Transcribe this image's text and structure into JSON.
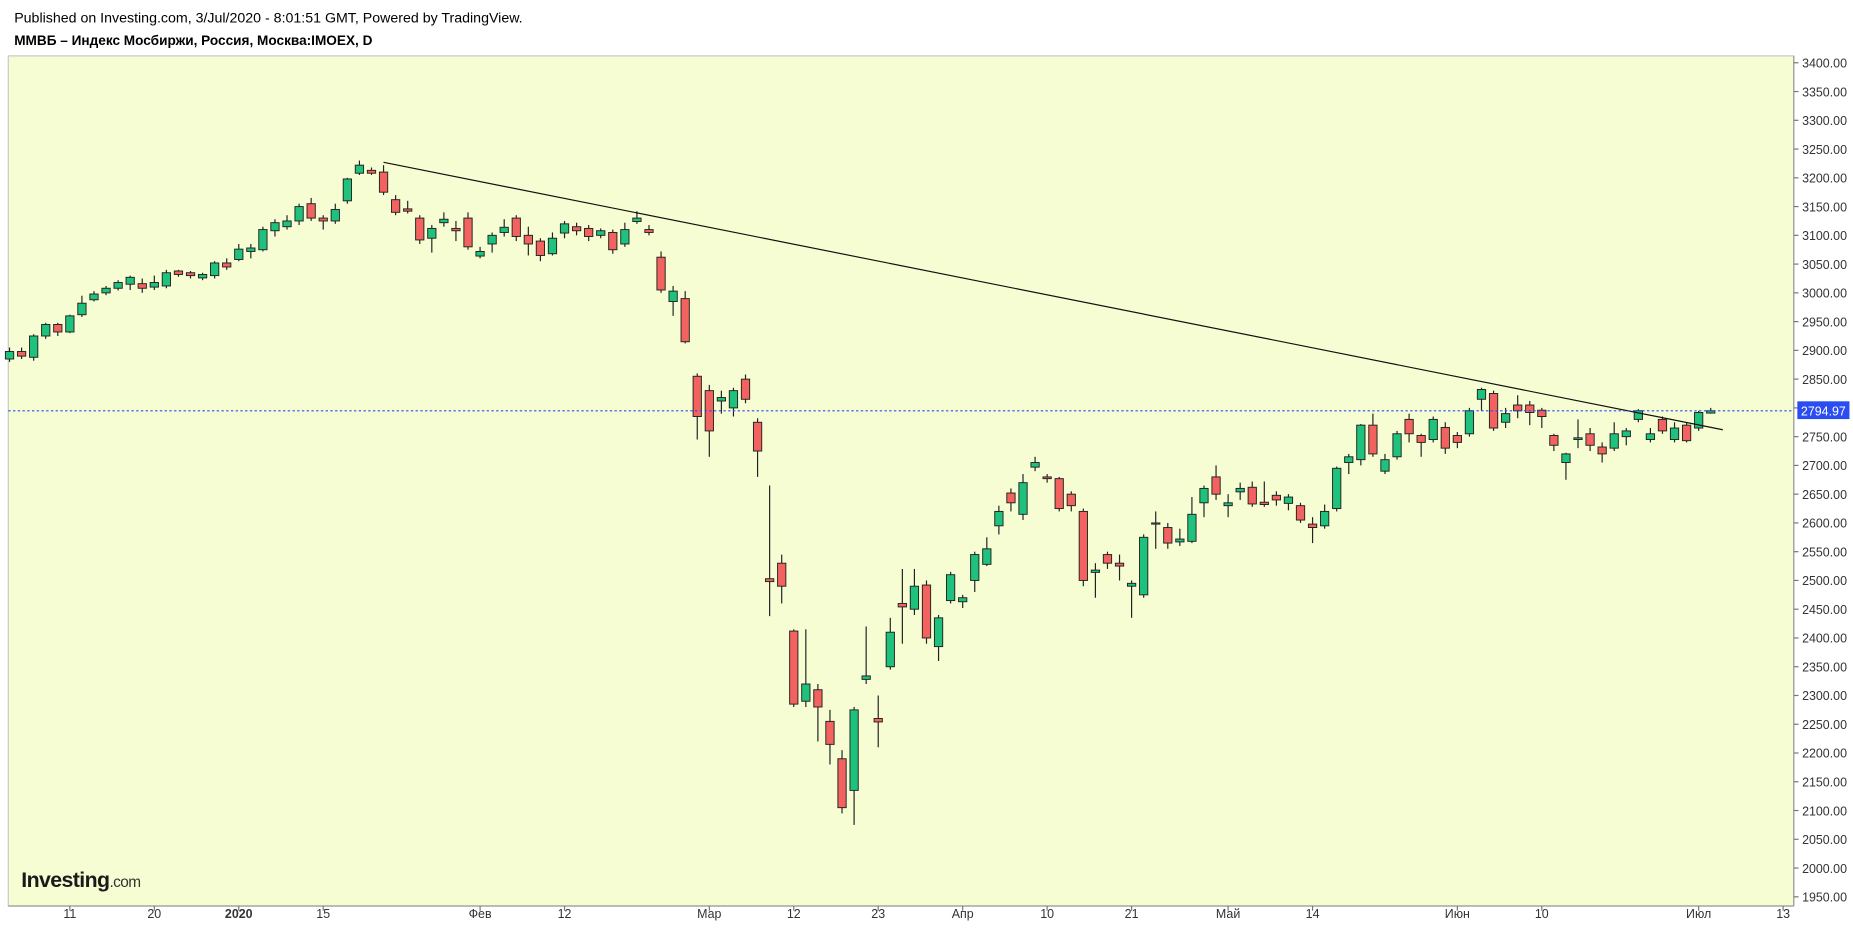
{
  "header": {
    "published": "Published on Investing.com, 3/Jul/2020 - 8:01:51 GMT, Powered by TradingView.",
    "symbol": "ММВБ – Индекс Мосбиржи, Россия, Москва:IMOEX, D",
    "logo": "Investing",
    "logo_suffix": ".com"
  },
  "chart_data": {
    "type": "candlestick",
    "categories": [
      null,
      null,
      null,
      null,
      null,
      "11",
      null,
      null,
      null,
      null,
      null,
      null,
      "20",
      null,
      null,
      null,
      null,
      null,
      null,
      "2020",
      null,
      null,
      null,
      null,
      null,
      null,
      "15",
      null,
      null,
      null,
      null,
      null,
      null,
      null,
      null,
      null,
      null,
      null,
      null,
      "Фев",
      null,
      null,
      null,
      null,
      null,
      null,
      "12",
      null,
      null,
      null,
      null,
      null,
      null,
      null,
      null,
      null,
      null,
      null,
      "Мар",
      null,
      null,
      null,
      null,
      null,
      null,
      "12",
      null,
      null,
      null,
      null,
      null,
      null,
      "23",
      null,
      null,
      null,
      null,
      null,
      null,
      "Апр",
      null,
      null,
      null,
      null,
      null,
      null,
      "10",
      null,
      null,
      null,
      null,
      null,
      null,
      "21",
      null,
      null,
      null,
      null,
      null,
      null,
      null,
      "Май",
      null,
      null,
      null,
      null,
      null,
      null,
      "14",
      null,
      null,
      null,
      null,
      null,
      null,
      null,
      null,
      null,
      null,
      null,
      "Июн",
      null,
      null,
      null,
      null,
      null,
      null,
      "10",
      null,
      null,
      null,
      null,
      null,
      null,
      null,
      null,
      null,
      null,
      null,
      null,
      "Июл",
      null,
      null,
      null,
      null,
      null,
      null,
      "13"
    ],
    "open": [
      2885,
      2898,
      2888,
      2925,
      2945,
      2932,
      2962,
      2988,
      3000,
      3008,
      3015,
      3016,
      3010,
      3012,
      3038,
      3035,
      3026,
      3030,
      3052,
      3058,
      3072,
      3075,
      3108,
      3115,
      3125,
      3155,
      3130,
      3125,
      3160,
      3208,
      3213,
      3210,
      3162,
      3146,
      3130,
      3095,
      3122,
      3112,
      3130,
      3064,
      3085,
      3105,
      3130,
      3100,
      3090,
      3068,
      3104,
      3115,
      3112,
      3100,
      3105,
      3085,
      3124,
      3110,
      3062,
      2985,
      2990,
      2855,
      2830,
      2812,
      2800,
      2850,
      2775,
      2503,
      2530,
      2412,
      2290,
      2310,
      2255,
      2190,
      2135,
      2328,
      2260,
      2350,
      2460,
      2450,
      2492,
      2385,
      2465,
      2463,
      2500,
      2528,
      2595,
      2652,
      2615,
      2697,
      2680,
      2677,
      2650,
      2620,
      2514,
      2545,
      2530,
      2490,
      2475,
      2600,
      2592,
      2567,
      2568,
      2635,
      2680,
      2630,
      2654,
      2662,
      2636,
      2648,
      2634,
      2630,
      2598,
      2595,
      2625,
      2705,
      2710,
      2770,
      2690,
      2715,
      2780,
      2752,
      2745,
      2766,
      2752,
      2755,
      2815,
      2825,
      2775,
      2805,
      2805,
      2796,
      2752,
      2705,
      2745,
      2755,
      2732,
      2730,
      2750,
      2780,
      2745,
      2780,
      2745,
      2770,
      2765,
      2791,
      null,
      null,
      null,
      null,
      null,
      null
    ],
    "high": [
      2905,
      2905,
      2928,
      2948,
      2948,
      2962,
      2995,
      3003,
      3012,
      3022,
      3030,
      3025,
      3030,
      3040,
      3040,
      3038,
      3035,
      3055,
      3060,
      3085,
      3085,
      3115,
      3128,
      3135,
      3155,
      3165,
      3135,
      3155,
      3200,
      3230,
      3218,
      3222,
      3170,
      3160,
      3135,
      3118,
      3140,
      3125,
      3140,
      3080,
      3105,
      3128,
      3135,
      3115,
      3095,
      3105,
      3125,
      3122,
      3118,
      3112,
      3110,
      3122,
      3142,
      3118,
      3072,
      3012,
      3003,
      2860,
      2840,
      2830,
      2835,
      2858,
      2782,
      2665,
      2545,
      2415,
      2415,
      2320,
      2275,
      2205,
      2280,
      2420,
      2300,
      2435,
      2520,
      2520,
      2500,
      2440,
      2515,
      2475,
      2550,
      2575,
      2630,
      2660,
      2685,
      2715,
      2685,
      2680,
      2655,
      2625,
      2530,
      2550,
      2545,
      2500,
      2580,
      2620,
      2600,
      2590,
      2645,
      2665,
      2700,
      2650,
      2670,
      2672,
      2672,
      2655,
      2650,
      2635,
      2610,
      2632,
      2698,
      2720,
      2772,
      2790,
      2720,
      2760,
      2790,
      2755,
      2785,
      2775,
      2758,
      2800,
      2835,
      2830,
      2800,
      2822,
      2812,
      2800,
      2755,
      2722,
      2780,
      2765,
      2740,
      2775,
      2765,
      2798,
      2765,
      2785,
      2775,
      2775,
      2795,
      2800,
      null,
      null,
      null,
      null,
      null,
      null
    ],
    "low": [
      2880,
      2885,
      2882,
      2920,
      2925,
      2930,
      2958,
      2985,
      2996,
      3004,
      3005,
      3000,
      3005,
      3008,
      3028,
      3025,
      3022,
      3025,
      3040,
      3055,
      3060,
      3072,
      3098,
      3110,
      3118,
      3125,
      3110,
      3120,
      3155,
      3205,
      3205,
      3170,
      3135,
      3138,
      3085,
      3070,
      3115,
      3090,
      3075,
      3060,
      3070,
      3098,
      3090,
      3065,
      3055,
      3065,
      3095,
      3100,
      3090,
      3095,
      3068,
      3080,
      3120,
      3100,
      3000,
      2960,
      2912,
      2745,
      2715,
      2790,
      2785,
      2808,
      2680,
      2438,
      2460,
      2280,
      2280,
      2220,
      2180,
      2095,
      2075,
      2320,
      2210,
      2345,
      2390,
      2440,
      2390,
      2360,
      2460,
      2452,
      2480,
      2525,
      2580,
      2620,
      2605,
      2690,
      2670,
      2620,
      2620,
      2490,
      2470,
      2520,
      2500,
      2435,
      2470,
      2555,
      2555,
      2560,
      2565,
      2610,
      2640,
      2610,
      2640,
      2628,
      2628,
      2630,
      2622,
      2600,
      2565,
      2590,
      2620,
      2685,
      2700,
      2715,
      2685,
      2710,
      2740,
      2715,
      2740,
      2720,
      2730,
      2750,
      2795,
      2760,
      2765,
      2782,
      2770,
      2765,
      2725,
      2675,
      2730,
      2725,
      2705,
      2725,
      2735,
      2775,
      2740,
      2755,
      2740,
      2740,
      2760,
      2790,
      null,
      null,
      null,
      null,
      null,
      null
    ],
    "close": [
      2898,
      2890,
      2925,
      2945,
      2932,
      2960,
      2982,
      2998,
      3008,
      3018,
      3027,
      3008,
      3018,
      3035,
      3032,
      3030,
      3032,
      3052,
      3045,
      3076,
      3078,
      3110,
      3122,
      3125,
      3150,
      3130,
      3125,
      3145,
      3198,
      3222,
      3208,
      3175,
      3140,
      3142,
      3092,
      3112,
      3128,
      3108,
      3080,
      3072,
      3100,
      3114,
      3098,
      3085,
      3065,
      3095,
      3120,
      3108,
      3098,
      3108,
      3075,
      3110,
      3130,
      3105,
      3005,
      3003,
      2915,
      2785,
      2760,
      2818,
      2830,
      2815,
      2725,
      2498,
      2490,
      2285,
      2320,
      2280,
      2215,
      2105,
      2275,
      2334,
      2254,
      2410,
      2454,
      2490,
      2400,
      2435,
      2510,
      2470,
      2545,
      2555,
      2620,
      2635,
      2670,
      2705,
      2677,
      2625,
      2630,
      2500,
      2518,
      2530,
      2525,
      2495,
      2575,
      2598,
      2565,
      2572,
      2615,
      2660,
      2650,
      2635,
      2660,
      2633,
      2632,
      2640,
      2645,
      2605,
      2592,
      2620,
      2695,
      2715,
      2770,
      2720,
      2710,
      2755,
      2755,
      2740,
      2780,
      2730,
      2740,
      2795,
      2832,
      2765,
      2790,
      2795,
      2792,
      2785,
      2735,
      2720,
      2748,
      2735,
      2720,
      2755,
      2760,
      2795,
      2755,
      2760,
      2765,
      2743,
      2792,
      2794.97,
      null,
      null,
      null,
      null,
      null,
      null
    ],
    "up_color": "#1ec27c",
    "down_color": "#f2625e",
    "price_line_color": "#2a4cf0",
    "trendline": {
      "x": [
        31,
        142
      ],
      "values": [
        3227,
        2762
      ]
    },
    "ylim": [
      1934,
      3412
    ],
    "yticks": [
      {
        "value": 1950,
        "label": "1950.00"
      },
      {
        "value": 2000,
        "label": "2000.00"
      },
      {
        "value": 2050,
        "label": "2050.00"
      },
      {
        "value": 2100,
        "label": "2100.00"
      },
      {
        "value": 2150,
        "label": "2150.00"
      },
      {
        "value": 2200,
        "label": "2200.00"
      },
      {
        "value": 2250,
        "label": "2250.00"
      },
      {
        "value": 2300,
        "label": "2300.00"
      },
      {
        "value": 2350,
        "label": "2350.00"
      },
      {
        "value": 2400,
        "label": "2400.00"
      },
      {
        "value": 2450,
        "label": "2450.00"
      },
      {
        "value": 2500,
        "label": "2500.00"
      },
      {
        "value": 2550,
        "label": "2550.00"
      },
      {
        "value": 2600,
        "label": "2600.00"
      },
      {
        "value": 2650,
        "label": "2650.00"
      },
      {
        "value": 2700,
        "label": "2700.00"
      },
      {
        "value": 2750,
        "label": "2750.00"
      },
      {
        "value": 2800,
        "label": "2800.00"
      },
      {
        "value": 2850,
        "label": "2850.00"
      },
      {
        "value": 2900,
        "label": "2900.00"
      },
      {
        "value": 2950,
        "label": "2950.00"
      },
      {
        "value": 3000,
        "label": "3000.00"
      },
      {
        "value": 3050,
        "label": "3050.00"
      },
      {
        "value": 3100,
        "label": "3100.00"
      },
      {
        "value": 3150,
        "label": "3150.00"
      },
      {
        "value": 3200,
        "label": "3200.00"
      },
      {
        "value": 3250,
        "label": "3250.00"
      },
      {
        "value": 3300,
        "label": "3300.00"
      },
      {
        "value": 3350,
        "label": "3350.00"
      },
      {
        "value": 3400,
        "label": "3400.00"
      }
    ]
  }
}
